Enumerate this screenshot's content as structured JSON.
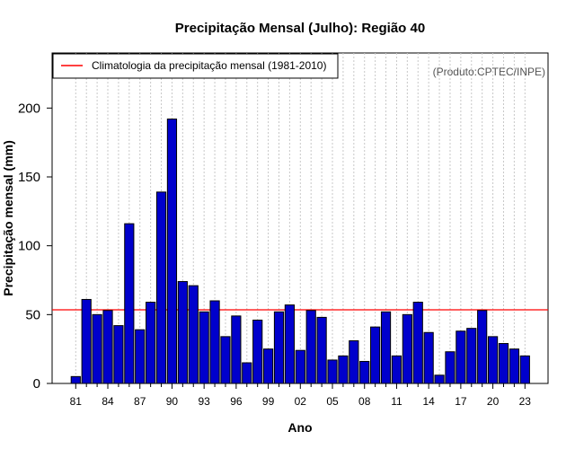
{
  "chart_data": {
    "type": "bar",
    "title": "Precipitação Mensal (Julho): Região 40",
    "xlabel": "Ano",
    "ylabel": "Precipitação mensal (mm)",
    "credit": "(Produto:CPTEC/INPE)",
    "ylim": [
      0,
      240
    ],
    "yticks": [
      0,
      50,
      100,
      150,
      200
    ],
    "grid": true,
    "legend_position": "top-left",
    "legend": [
      {
        "label": "Climatologia da precipitação mensal (1981-2010)",
        "color": "#ff0000"
      }
    ],
    "climatology": 53.5,
    "bar_color": "#0000cc",
    "categories": [
      "81",
      "82",
      "83",
      "84",
      "85",
      "86",
      "87",
      "88",
      "89",
      "90",
      "91",
      "92",
      "93",
      "94",
      "95",
      "96",
      "97",
      "98",
      "99",
      "00",
      "01",
      "02",
      "03",
      "04",
      "05",
      "06",
      "07",
      "08",
      "09",
      "10",
      "11",
      "12",
      "13",
      "14",
      "15",
      "16",
      "17",
      "18",
      "19",
      "20",
      "21",
      "22",
      "23"
    ],
    "values": [
      5,
      61,
      50,
      53,
      42,
      116,
      39,
      59,
      139,
      192,
      74,
      71,
      52,
      60,
      34,
      49,
      15,
      46,
      25,
      52,
      57,
      24,
      53,
      48,
      17,
      20,
      31,
      16,
      41,
      52,
      20,
      50,
      59,
      37,
      6,
      23,
      38,
      40,
      53,
      34,
      29,
      25,
      20
    ],
    "xtick_labels": [
      "81",
      "84",
      "87",
      "90",
      "93",
      "96",
      "99",
      "02",
      "05",
      "08",
      "11",
      "14",
      "17",
      "20",
      "23"
    ]
  }
}
